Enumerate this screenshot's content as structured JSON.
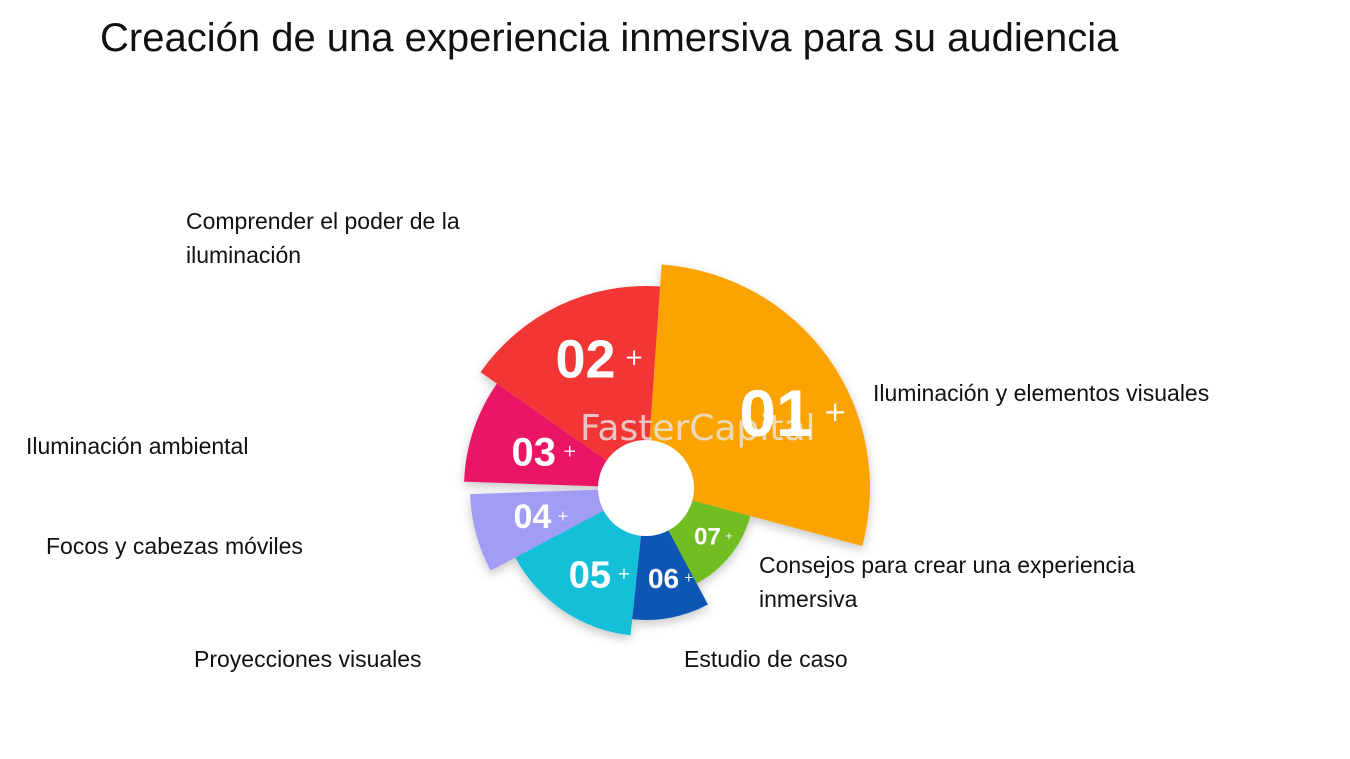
{
  "title": "Creación de una experiencia inmersiva para su audiencia",
  "watermark": "FasterCapital",
  "colors": {
    "s01": "#fba305",
    "s02": "#f23535",
    "s03": "#ea1765",
    "s04": "#a19cf4",
    "s05": "#14bfd8",
    "s06": "#0f56b5",
    "s07": "#71bd23"
  },
  "segments": [
    {
      "id": "01",
      "label": "Iluminación y elementos visuales"
    },
    {
      "id": "02",
      "label": "Comprender el poder de la iluminación"
    },
    {
      "id": "03",
      "label": "Iluminación ambiental"
    },
    {
      "id": "04",
      "label": "Focos y cabezas móviles"
    },
    {
      "id": "05",
      "label": "Proyecciones visuales"
    },
    {
      "id": "06",
      "label": "Estudio de caso"
    },
    {
      "id": "07",
      "label": "Consejos para crear una experiencia inmersiva"
    }
  ]
}
